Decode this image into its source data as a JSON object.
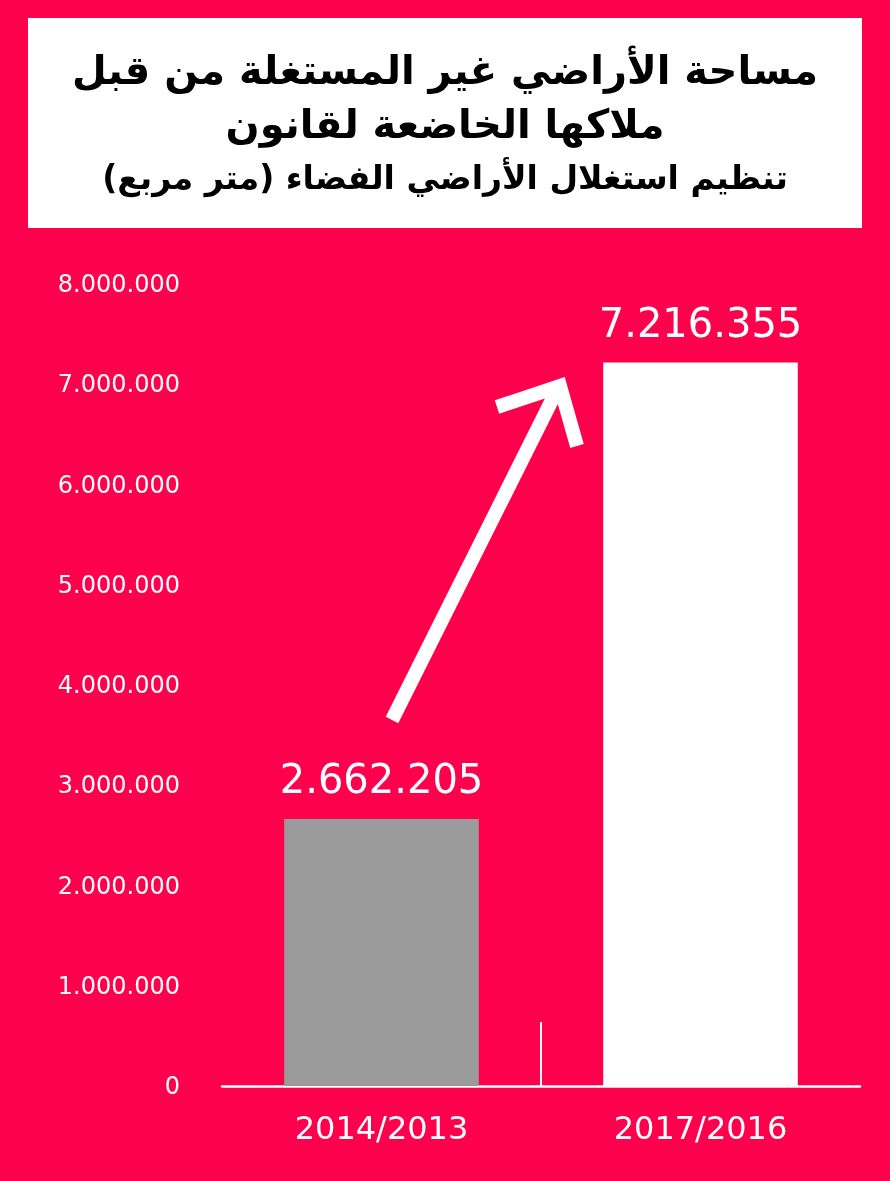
{
  "chart_data": {
    "type": "bar",
    "title": "مساحة الأراضي غير المستغلة من قبل ملاكها الخاضعة لقانون",
    "subtitle": "تنظيم استغلال الأراضي الفضاء (متر مربع)",
    "categories": [
      "2014/2013",
      "2017/2016"
    ],
    "values": [
      2662205,
      7216355
    ],
    "colors": [
      "#9b9b9b",
      "#ffffff"
    ],
    "value_labels": [
      "2.662.205",
      "7.216.355"
    ],
    "ylim": [
      0,
      8000000
    ],
    "yticks": [
      0,
      {
        "value": 1000000,
        "label": "1.000.000"
      },
      {
        "value": 2000000,
        "label": "2.000.000"
      },
      {
        "value": 3000000,
        "label": "3.000.000"
      },
      {
        "value": 4000000,
        "label": "4.000.000"
      },
      {
        "value": 5000000,
        "label": "5.000.000"
      },
      {
        "value": 6000000,
        "label": "6.000.000"
      },
      {
        "value": 7000000,
        "label": "7.000.000"
      },
      {
        "value": 8000000,
        "label": "8.000.000"
      }
    ],
    "grid": false
  }
}
